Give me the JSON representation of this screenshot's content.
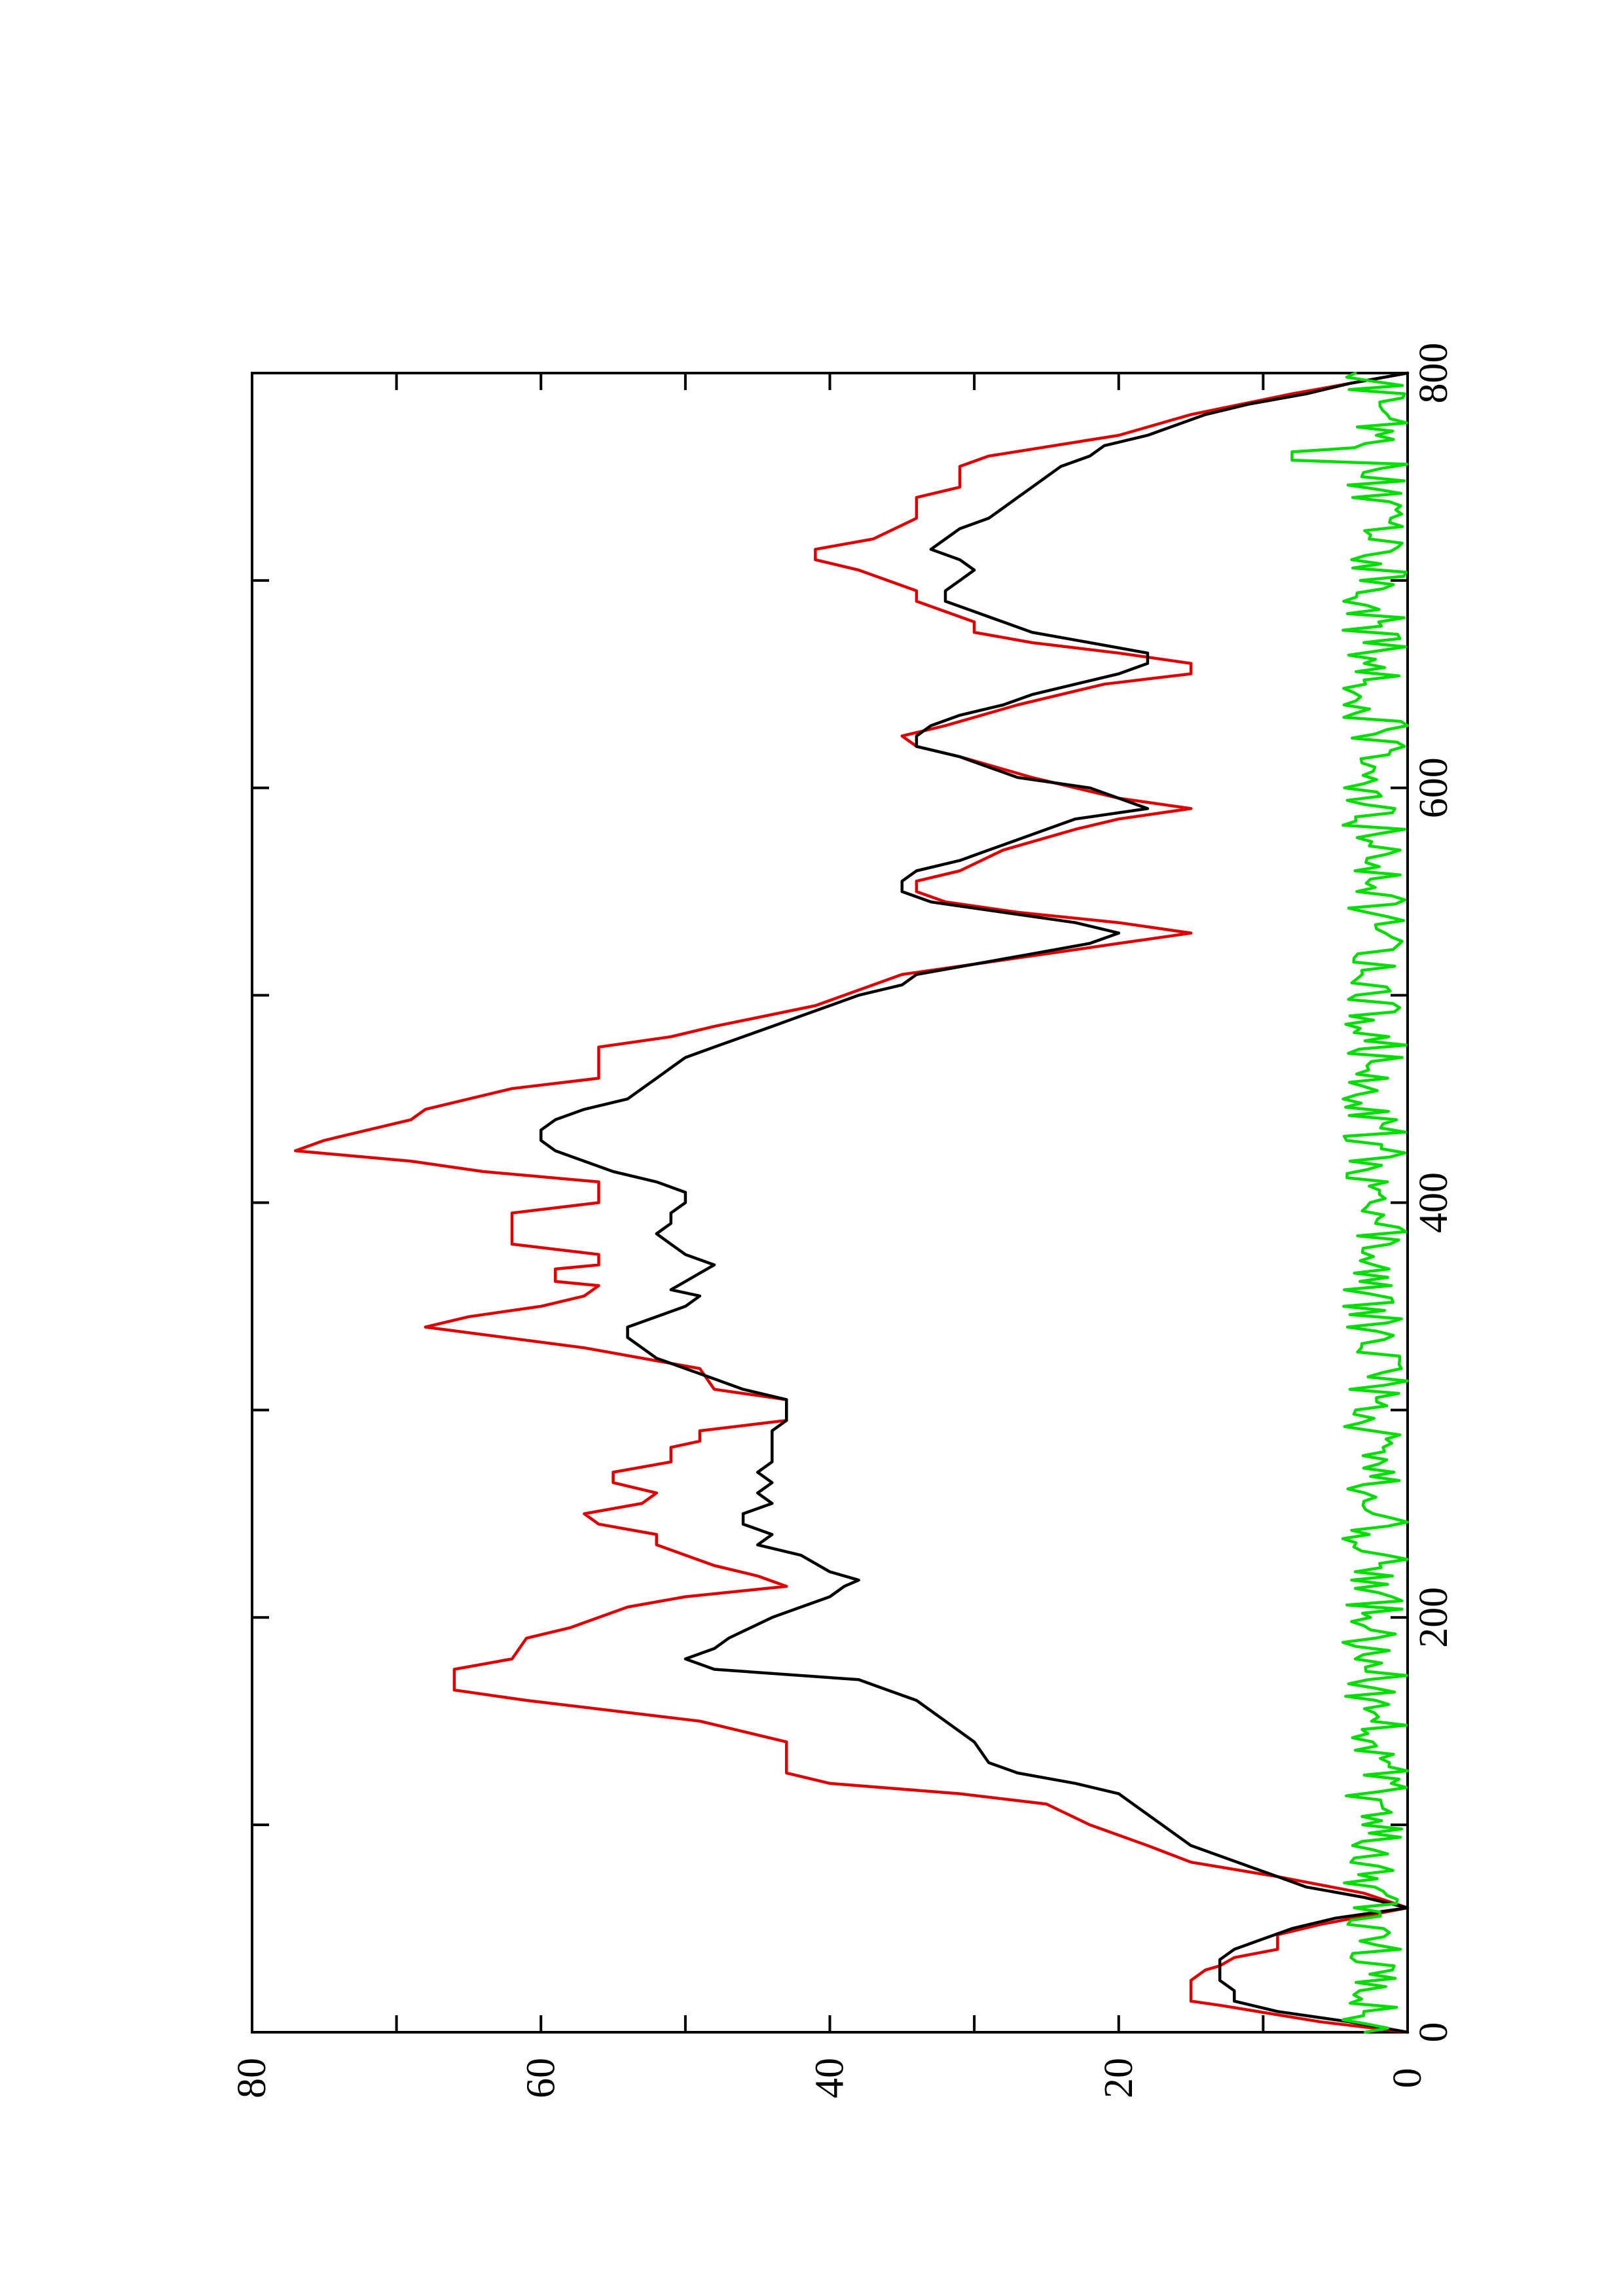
{
  "chart_data": {
    "type": "line",
    "orientation": "page rotated 90 degrees counter-clockwise",
    "title": "",
    "xlabel": "",
    "ylabel": "",
    "xlim": [
      0,
      800
    ],
    "ylim": [
      0,
      80
    ],
    "x_ticks": [
      "0",
      "200",
      "400",
      "600",
      "800"
    ],
    "x_minor_ticks": [
      100,
      300,
      500,
      700
    ],
    "y_ticks": [
      "0",
      "20",
      "40",
      "60",
      "80"
    ],
    "y_minor_ticks": [
      10,
      30,
      50,
      70
    ],
    "grid": false,
    "legend": "none",
    "series": [
      {
        "color": "#e00000",
        "style": "stepped",
        "points": [
          [
            0,
            0
          ],
          [
            5,
            6
          ],
          [
            13,
            13
          ],
          [
            15,
            15
          ],
          [
            25,
            15
          ],
          [
            30,
            14
          ],
          [
            32,
            13
          ],
          [
            36,
            12
          ],
          [
            40,
            9
          ],
          [
            47,
            9
          ],
          [
            52,
            6
          ],
          [
            60,
            0
          ],
          [
            67,
            3
          ],
          [
            75,
            9
          ],
          [
            82,
            15
          ],
          [
            90,
            18
          ],
          [
            100,
            22
          ],
          [
            110,
            25
          ],
          [
            115,
            31
          ],
          [
            120,
            40
          ],
          [
            125,
            43
          ],
          [
            140,
            43
          ],
          [
            150,
            49
          ],
          [
            160,
            61
          ],
          [
            165,
            66
          ],
          [
            175,
            66
          ],
          [
            180,
            62
          ],
          [
            190,
            61
          ],
          [
            195,
            58
          ],
          [
            205,
            54
          ],
          [
            210,
            50
          ],
          [
            215,
            43
          ],
          [
            220,
            45
          ],
          [
            225,
            48
          ],
          [
            235,
            52
          ],
          [
            240,
            52
          ],
          [
            245,
            56
          ],
          [
            250,
            57
          ],
          [
            255,
            53
          ],
          [
            260,
            52
          ],
          [
            265,
            55
          ],
          [
            270,
            55
          ],
          [
            275,
            51
          ],
          [
            282,
            51
          ],
          [
            285,
            49
          ],
          [
            290,
            49
          ],
          [
            295,
            43
          ],
          [
            305,
            43
          ],
          [
            310,
            48
          ],
          [
            320,
            49
          ],
          [
            330,
            57
          ],
          [
            340,
            68
          ],
          [
            345,
            65
          ],
          [
            350,
            60
          ],
          [
            355,
            57
          ],
          [
            360,
            56
          ],
          [
            362,
            59
          ],
          [
            368,
            59
          ],
          [
            370,
            56
          ],
          [
            375,
            56
          ],
          [
            380,
            62
          ],
          [
            385,
            62
          ],
          [
            395,
            62
          ],
          [
            400,
            56
          ],
          [
            410,
            56
          ],
          [
            415,
            64
          ],
          [
            420,
            69
          ],
          [
            425,
            77
          ],
          [
            430,
            75
          ],
          [
            435,
            72
          ],
          [
            440,
            69
          ],
          [
            445,
            68
          ],
          [
            450,
            65
          ],
          [
            455,
            62
          ],
          [
            460,
            56
          ],
          [
            475,
            56
          ],
          [
            480,
            51
          ],
          [
            485,
            48
          ],
          [
            495,
            41
          ],
          [
            505,
            37
          ],
          [
            510,
            35
          ],
          [
            515,
            30
          ],
          [
            520,
            25
          ],
          [
            525,
            20
          ],
          [
            530,
            15
          ],
          [
            535,
            20
          ],
          [
            540,
            27
          ],
          [
            545,
            32
          ],
          [
            550,
            34
          ],
          [
            555,
            34
          ],
          [
            560,
            31
          ],
          [
            570,
            28
          ],
          [
            580,
            23
          ],
          [
            585,
            20
          ],
          [
            590,
            15
          ],
          [
            595,
            20
          ],
          [
            605,
            26
          ],
          [
            615,
            31
          ],
          [
            620,
            34
          ],
          [
            625,
            35
          ],
          [
            630,
            32
          ],
          [
            640,
            27
          ],
          [
            650,
            21
          ],
          [
            655,
            15
          ],
          [
            660,
            15
          ],
          [
            665,
            20
          ],
          [
            670,
            26
          ],
          [
            675,
            30
          ],
          [
            680,
            30
          ],
          [
            690,
            34
          ],
          [
            695,
            34
          ],
          [
            705,
            38
          ],
          [
            710,
            41
          ],
          [
            715,
            41
          ],
          [
            720,
            37
          ],
          [
            730,
            34
          ],
          [
            740,
            34
          ],
          [
            745,
            31
          ],
          [
            755,
            31
          ],
          [
            760,
            29
          ],
          [
            770,
            20
          ],
          [
            780,
            15
          ],
          [
            790,
            8
          ],
          [
            800,
            0
          ]
        ]
      },
      {
        "color": "#000000",
        "style": "noisy",
        "points": [
          [
            0,
            0
          ],
          [
            5,
            4
          ],
          [
            10,
            9
          ],
          [
            15,
            12
          ],
          [
            20,
            12
          ],
          [
            25,
            13
          ],
          [
            30,
            13
          ],
          [
            35,
            13
          ],
          [
            40,
            12
          ],
          [
            45,
            10
          ],
          [
            50,
            8
          ],
          [
            55,
            5
          ],
          [
            60,
            0
          ],
          [
            65,
            3
          ],
          [
            70,
            7
          ],
          [
            75,
            9
          ],
          [
            80,
            11
          ],
          [
            90,
            15
          ],
          [
            100,
            17
          ],
          [
            110,
            19
          ],
          [
            115,
            20
          ],
          [
            120,
            23
          ],
          [
            125,
            27
          ],
          [
            130,
            29
          ],
          [
            140,
            30
          ],
          [
            150,
            32
          ],
          [
            160,
            34
          ],
          [
            165,
            36
          ],
          [
            170,
            38
          ],
          [
            175,
            48
          ],
          [
            180,
            50
          ],
          [
            185,
            48
          ],
          [
            190,
            47
          ],
          [
            200,
            44
          ],
          [
            205,
            42
          ],
          [
            210,
            40
          ],
          [
            215,
            39
          ],
          [
            218,
            38
          ],
          [
            222,
            40
          ],
          [
            230,
            42
          ],
          [
            235,
            45
          ],
          [
            240,
            44
          ],
          [
            245,
            46
          ],
          [
            250,
            46
          ],
          [
            255,
            44
          ],
          [
            260,
            45
          ],
          [
            265,
            44
          ],
          [
            270,
            45
          ],
          [
            275,
            44
          ],
          [
            285,
            44
          ],
          [
            290,
            44
          ],
          [
            295,
            43
          ],
          [
            305,
            43
          ],
          [
            310,
            46
          ],
          [
            315,
            48
          ],
          [
            320,
            50
          ],
          [
            325,
            52
          ],
          [
            330,
            53
          ],
          [
            335,
            54
          ],
          [
            340,
            54
          ],
          [
            345,
            52
          ],
          [
            350,
            50
          ],
          [
            355,
            49
          ],
          [
            358,
            51
          ],
          [
            362,
            50
          ],
          [
            366,
            49
          ],
          [
            370,
            48
          ],
          [
            375,
            50
          ],
          [
            380,
            51
          ],
          [
            385,
            52
          ],
          [
            390,
            51
          ],
          [
            395,
            51
          ],
          [
            400,
            50
          ],
          [
            405,
            50
          ],
          [
            410,
            52
          ],
          [
            415,
            55
          ],
          [
            420,
            57
          ],
          [
            425,
            59
          ],
          [
            430,
            60
          ],
          [
            435,
            60
          ],
          [
            440,
            59
          ],
          [
            445,
            57
          ],
          [
            450,
            54
          ],
          [
            455,
            53
          ],
          [
            460,
            52
          ],
          [
            465,
            51
          ],
          [
            470,
            50
          ],
          [
            475,
            48
          ],
          [
            480,
            46
          ],
          [
            485,
            44
          ],
          [
            490,
            42
          ],
          [
            495,
            40
          ],
          [
            500,
            38
          ],
          [
            505,
            35
          ],
          [
            510,
            34
          ],
          [
            515,
            30
          ],
          [
            520,
            26
          ],
          [
            525,
            22
          ],
          [
            530,
            20
          ],
          [
            535,
            23
          ],
          [
            540,
            28
          ],
          [
            545,
            33
          ],
          [
            550,
            35
          ],
          [
            555,
            35
          ],
          [
            560,
            34
          ],
          [
            565,
            31
          ],
          [
            570,
            29
          ],
          [
            575,
            27
          ],
          [
            580,
            25
          ],
          [
            585,
            23
          ],
          [
            590,
            18
          ],
          [
            595,
            20
          ],
          [
            600,
            22
          ],
          [
            605,
            27
          ],
          [
            610,
            29
          ],
          [
            615,
            31
          ],
          [
            620,
            34
          ],
          [
            625,
            34
          ],
          [
            630,
            33
          ],
          [
            635,
            31
          ],
          [
            640,
            28
          ],
          [
            645,
            26
          ],
          [
            650,
            23
          ],
          [
            655,
            20
          ],
          [
            660,
            18
          ],
          [
            665,
            18
          ],
          [
            670,
            22
          ],
          [
            675,
            26
          ],
          [
            680,
            28
          ],
          [
            685,
            30
          ],
          [
            690,
            32
          ],
          [
            695,
            32
          ],
          [
            700,
            31
          ],
          [
            705,
            30
          ],
          [
            710,
            31
          ],
          [
            715,
            33
          ],
          [
            720,
            32
          ],
          [
            725,
            31
          ],
          [
            730,
            29
          ],
          [
            735,
            28
          ],
          [
            740,
            27
          ],
          [
            745,
            26
          ],
          [
            750,
            25
          ],
          [
            755,
            24
          ],
          [
            760,
            22
          ],
          [
            765,
            21
          ],
          [
            770,
            18
          ],
          [
            775,
            16
          ],
          [
            780,
            14
          ],
          [
            785,
            11
          ],
          [
            790,
            7
          ],
          [
            795,
            4
          ],
          [
            800,
            0
          ]
        ]
      },
      {
        "color": "#00dd00",
        "style": "noise",
        "amplitude": 4.5,
        "xrange": [
          0,
          800
        ],
        "note_peak": [
          [
            760,
            8
          ]
        ]
      }
    ]
  }
}
